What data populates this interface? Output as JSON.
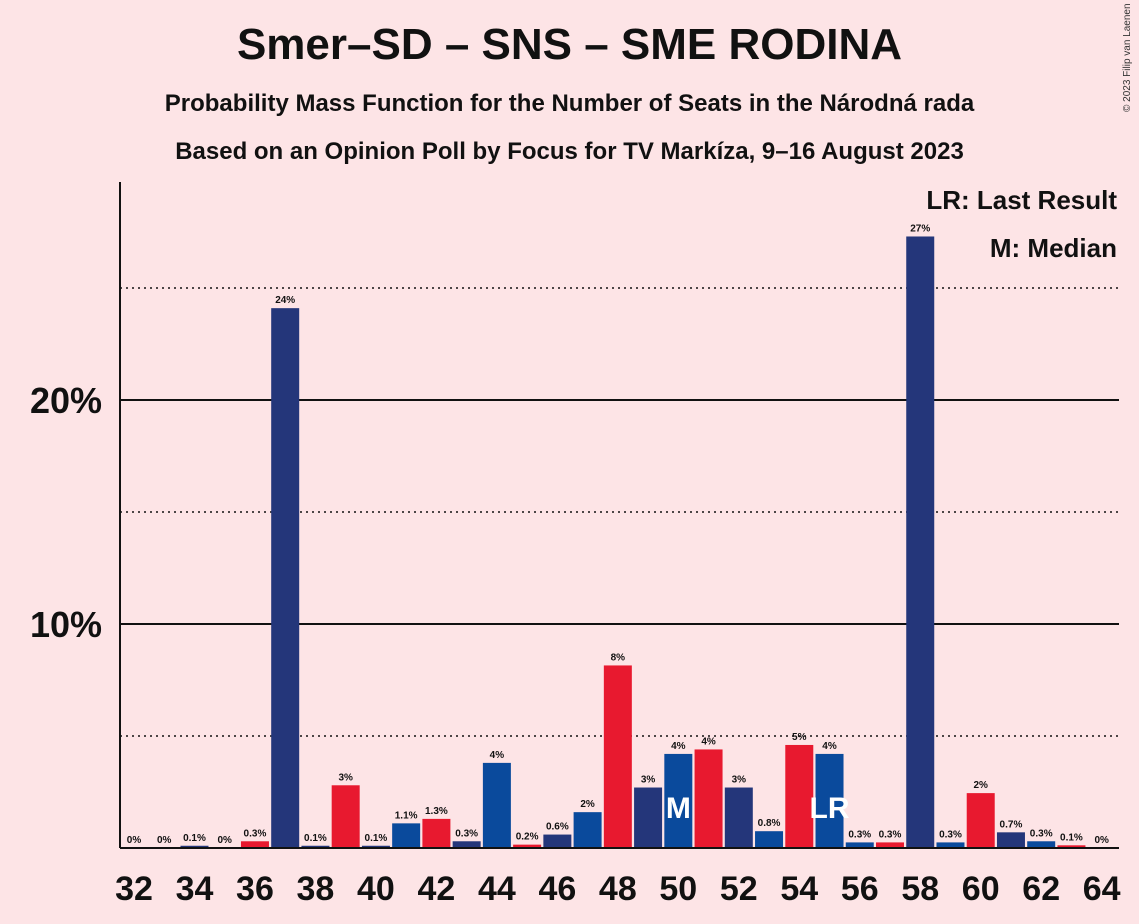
{
  "title": "Smer–SD – SNS – SME RODINA",
  "subtitle1": "Probability Mass Function for the Number of Seats in the Národná rada",
  "subtitle2": "Based on an Opinion Poll by Focus for TV Markíza, 9–16 August 2023",
  "copyright": "© 2023 Filip van Laenen",
  "legend": {
    "last_result": "LR: Last Result",
    "median": "M: Median"
  },
  "colors": {
    "background": "#fde4e6",
    "navy": "#24367a",
    "red": "#e8192f",
    "blue": "#0a4a9c"
  },
  "chart_data": {
    "type": "bar",
    "x": [
      32,
      33,
      34,
      35,
      36,
      37,
      38,
      39,
      40,
      41,
      42,
      43,
      44,
      45,
      46,
      47,
      48,
      49,
      50,
      51,
      52,
      53,
      54,
      55,
      56,
      57,
      58,
      59,
      60,
      61,
      62,
      63,
      64
    ],
    "values": [
      0,
      0,
      0.1,
      0,
      0.3,
      24.1,
      0.1,
      2.8,
      0.1,
      1.1,
      1.3,
      0.3,
      3.8,
      0.15,
      0.6,
      1.6,
      8.15,
      2.7,
      4.2,
      4.4,
      2.7,
      0.75,
      4.6,
      4.2,
      0.25,
      0.25,
      27.3,
      0.25,
      2.45,
      0.7,
      0.3,
      0.12,
      0
    ],
    "labels": [
      "0%",
      "0%",
      "0.1%",
      "0%",
      "0.3%",
      "24%",
      "0.1%",
      "3%",
      "0.1%",
      "1.1%",
      "1.3%",
      "0.3%",
      "4%",
      "0.2%",
      "0.6%",
      "2%",
      "8%",
      "3%",
      "4%",
      "4%",
      "3%",
      "0.8%",
      "5%",
      "4%",
      "0.3%",
      "0.3%",
      "27%",
      "0.3%",
      "2%",
      "0.7%",
      "0.3%",
      "0.1%",
      "0%"
    ],
    "colors": [
      "navy",
      "navy",
      "navy",
      "navy",
      "red",
      "navy",
      "navy",
      "red",
      "navy",
      "blue",
      "red",
      "navy",
      "blue",
      "red",
      "navy",
      "blue",
      "red",
      "navy",
      "blue",
      "red",
      "navy",
      "blue",
      "red",
      "blue",
      "blue",
      "red",
      "navy",
      "blue",
      "red",
      "navy",
      "blue",
      "red",
      "navy"
    ],
    "markers": {
      "50": "M",
      "55": "LR"
    },
    "x_tick_labels": [
      "32",
      "34",
      "36",
      "38",
      "40",
      "42",
      "44",
      "46",
      "48",
      "50",
      "52",
      "54",
      "56",
      "58",
      "60",
      "62",
      "64"
    ],
    "y_tick_labels": [
      "10%",
      "20%"
    ],
    "ylim": [
      0,
      29.5
    ],
    "gridlines_solid": [
      10,
      20
    ],
    "gridlines_dotted": [
      5,
      15,
      25
    ],
    "legend_placement": "top-right"
  }
}
